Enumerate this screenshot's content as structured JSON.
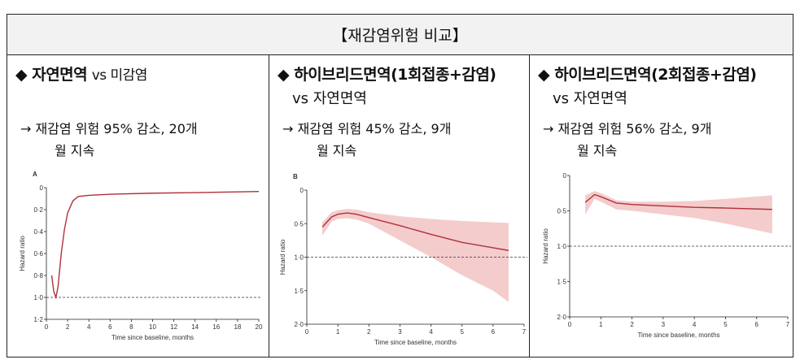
{
  "title": "【재감염위험 비교】",
  "columns": [
    {
      "heading": "◆ 자연면역",
      "vs": "vs 미감염",
      "vs_inline": true,
      "result_line1": "→ 재감염 위험 95% 감소, 20개",
      "result_line2": "월 지속"
    },
    {
      "heading": "◆ 하이브리드면역(1회접종+감염)",
      "vs": "vs 자연면역",
      "vs_inline": false,
      "result_line1": "→ 재감염 위험 45% 감소, 9개",
      "result_line2": "월 지속"
    },
    {
      "heading": "◆ 하이브리드면역(2회접종+감염)",
      "vs": "vs 자연면역",
      "vs_inline": false,
      "result_line1": "→ 재감염 위험 56% 감소, 9개",
      "result_line2": "월 지속"
    }
  ],
  "colors": {
    "line": "#b0303c",
    "band": "#f4cccc",
    "reference": "#335"
  },
  "chart_data": [
    {
      "type": "line",
      "panel": "A",
      "xlabel": "Time since baseline, months",
      "ylabel": "Hazard ratio",
      "xlim": [
        0,
        20
      ],
      "ylim": [
        0,
        1.2
      ],
      "y_inverted": true,
      "xticks": [
        0,
        2,
        4,
        6,
        8,
        10,
        12,
        14,
        16,
        18,
        20
      ],
      "yticks": [
        "0",
        "0·2",
        "0·4",
        "0·6",
        "0·8",
        "1·0",
        "1·2"
      ],
      "ytick_values": [
        0,
        0.2,
        0.4,
        0.6,
        0.8,
        1.0,
        1.2
      ],
      "reference_line": 1.0,
      "x": [
        0.5,
        0.7,
        0.9,
        1.1,
        1.4,
        1.7,
        2,
        2.5,
        3,
        4,
        6,
        10,
        14,
        20
      ],
      "y": [
        0.8,
        0.95,
        1.0,
        0.9,
        0.6,
        0.38,
        0.23,
        0.12,
        0.08,
        0.07,
        0.06,
        0.05,
        0.045,
        0.035
      ],
      "ci_low": null,
      "ci_high": null
    },
    {
      "type": "line",
      "panel": "B",
      "xlabel": "Time since baseline, months",
      "ylabel": "Hazard ratio",
      "xlim": [
        0,
        7
      ],
      "ylim": [
        0,
        2
      ],
      "y_inverted": true,
      "xticks": [
        0,
        1,
        2,
        3,
        4,
        5,
        6,
        7
      ],
      "yticks": [
        "0",
        "0·5",
        "1·0",
        "1·5",
        "2·0"
      ],
      "ytick_values": [
        0,
        0.5,
        1,
        1.5,
        2
      ],
      "reference_line": 1.0,
      "x": [
        0.5,
        0.8,
        1,
        1.3,
        1.6,
        2,
        3,
        4,
        5,
        6,
        6.5
      ],
      "y": [
        0.55,
        0.4,
        0.36,
        0.34,
        0.36,
        0.41,
        0.53,
        0.66,
        0.78,
        0.86,
        0.9
      ],
      "ci_low": [
        0.48,
        0.33,
        0.3,
        0.28,
        0.29,
        0.33,
        0.39,
        0.43,
        0.46,
        0.48,
        0.49
      ],
      "ci_high": [
        0.68,
        0.47,
        0.43,
        0.42,
        0.44,
        0.5,
        0.75,
        1.0,
        1.27,
        1.5,
        1.67
      ]
    },
    {
      "type": "line",
      "panel": "",
      "xlabel": "Time since baseline, months",
      "ylabel": "Hazard ratio",
      "xlim": [
        0,
        7
      ],
      "ylim": [
        0,
        2
      ],
      "y_inverted": true,
      "xticks": [
        0,
        1,
        2,
        3,
        4,
        5,
        6,
        7
      ],
      "yticks": [
        "0",
        "0·5",
        "1·0",
        "1·5",
        "2·0"
      ],
      "ytick_values": [
        0,
        0.5,
        1,
        1.5,
        2
      ],
      "reference_line": 1.0,
      "x": [
        0.5,
        0.8,
        1,
        1.5,
        2,
        3,
        4,
        5,
        6.5
      ],
      "y": [
        0.38,
        0.27,
        0.3,
        0.39,
        0.41,
        0.43,
        0.45,
        0.46,
        0.48
      ],
      "ci_low": [
        0.28,
        0.22,
        0.25,
        0.35,
        0.37,
        0.37,
        0.36,
        0.33,
        0.28
      ],
      "ci_high": [
        0.55,
        0.33,
        0.37,
        0.48,
        0.5,
        0.55,
        0.6,
        0.68,
        0.82
      ]
    }
  ]
}
